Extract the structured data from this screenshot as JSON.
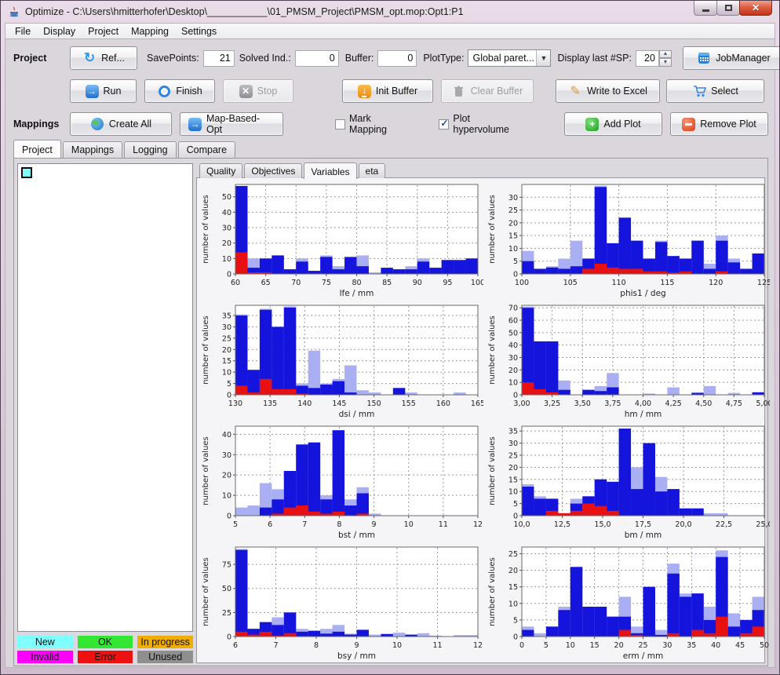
{
  "window": {
    "title": "Optimize - C:\\Users\\hmitterhofer\\Desktop\\___________\\01_PMSM_Project\\PMSM_opt.mop:Opt1:P1",
    "controls": {
      "minimize": "minimize",
      "maximize": "maximize",
      "close": "close"
    }
  },
  "menu": {
    "items": [
      "File",
      "Display",
      "Project",
      "Mapping",
      "Settings"
    ]
  },
  "toolbar": {
    "project_label": "Project",
    "ref_button": "Ref...",
    "savepoints_label": "SavePoints:",
    "savepoints_value": "21",
    "solved_label": "Solved Ind.:",
    "solved_value": "0",
    "buffer_label": "Buffer:",
    "buffer_value": "0",
    "plottype_label": "PlotType:",
    "plottype_value": "Global paret...",
    "display_last_label": "Display last #SP:",
    "display_last_value": "20",
    "jobmanager_button": "JobManager",
    "run_button": "Run",
    "finish_button": "Finish",
    "stop_button": "Stop",
    "init_buffer_button": "Init Buffer",
    "clear_buffer_button": "Clear Buffer",
    "excel_button": "Write to Excel",
    "select_button": "Select",
    "mappings_label": "Mappings",
    "create_all_button": "Create All",
    "map_based_button": "Map-Based-Opt",
    "mark_mapping_label": "Mark Mapping",
    "mark_mapping_checked": false,
    "plot_hypervolume_label": "Plot hypervolume",
    "plot_hypervolume_checked": true,
    "add_plot_button": "Add Plot",
    "remove_plot_button": "Remove Plot"
  },
  "tabs": {
    "outer": [
      "Project",
      "Mappings",
      "Logging",
      "Compare"
    ],
    "outer_active": "Project",
    "inner": [
      "Quality",
      "Objectives",
      "Variables",
      "eta"
    ],
    "inner_active": "Variables"
  },
  "legend": {
    "items": [
      {
        "label": "New",
        "color": "#80ffff"
      },
      {
        "label": "OK",
        "color": "#33e633"
      },
      {
        "label": "In progress",
        "color": "#f0ad00"
      },
      {
        "label": "Invalid",
        "color": "#ff00ff"
      },
      {
        "label": "Error",
        "color": "#ee1111"
      },
      {
        "label": "Unused",
        "color": "#8f8f8f"
      }
    ]
  },
  "icons": {
    "refresh": "↻",
    "run-arrow": "→",
    "stop-x": "✕",
    "init-arrow": "↓",
    "pencil": "✎",
    "plus": "+",
    "check": "✓",
    "combo-arrow": "▼",
    "spin-up": "▲",
    "spin-down": "▼",
    "close-x": "✕"
  },
  "chart_colors": {
    "background_series": "#a9aff2",
    "current_series": "#1414dd",
    "error_series": "#e81010"
  },
  "chart_data": [
    {
      "type": "bar",
      "name": "lfe",
      "xlabel": "lfe / mm",
      "ylabel": "number of values",
      "x_range": [
        60,
        100
      ],
      "x_ticks": [
        60,
        65,
        70,
        75,
        80,
        85,
        90,
        95,
        100
      ],
      "x_tick_labels": [
        "60",
        "65",
        "70",
        "75",
        "80",
        "85",
        "90",
        "95",
        "100"
      ],
      "y_ticks": [
        0,
        10,
        20,
        30,
        40,
        50
      ],
      "y_max": 58,
      "series": [
        {
          "name": "background",
          "color": "#a9aff2",
          "values": [
            57,
            10,
            10,
            12,
            3,
            10,
            2,
            12,
            5,
            11,
            12,
            1,
            4,
            3,
            5,
            10,
            4,
            9,
            9,
            10
          ]
        },
        {
          "name": "current",
          "color": "#1414dd",
          "values": [
            57,
            4,
            10,
            12,
            3,
            8,
            2,
            11,
            3,
            11,
            5,
            0,
            4,
            3,
            3,
            8,
            4,
            9,
            9,
            10
          ]
        },
        {
          "name": "error",
          "color": "#e81010",
          "values": [
            14,
            1,
            1,
            0,
            0,
            0,
            0,
            0,
            0,
            0,
            0,
            0,
            0,
            0,
            0,
            0,
            0,
            0,
            0,
            0
          ]
        }
      ]
    },
    {
      "type": "bar",
      "name": "phis1",
      "xlabel": "phis1 / deg",
      "ylabel": "number of values",
      "x_range": [
        100,
        125
      ],
      "x_ticks": [
        100,
        105,
        110,
        115,
        120,
        125
      ],
      "x_tick_labels": [
        "100",
        "105",
        "110",
        "115",
        "120",
        "125"
      ],
      "y_ticks": [
        0,
        5,
        10,
        15,
        20,
        25,
        30
      ],
      "y_max": 35,
      "series": [
        {
          "name": "background",
          "color": "#a9aff2",
          "values": [
            9,
            2,
            3,
            6,
            13,
            6,
            34.5,
            12,
            22,
            13,
            6,
            13,
            7,
            6,
            13,
            4,
            15,
            6,
            2,
            8
          ]
        },
        {
          "name": "current",
          "color": "#1414dd",
          "values": [
            5,
            2,
            2.5,
            2,
            3,
            6,
            34,
            12,
            22,
            13,
            6,
            12.5,
            7,
            6,
            13,
            2,
            13,
            4.5,
            2,
            8
          ]
        },
        {
          "name": "error",
          "color": "#e81010",
          "values": [
            0,
            0,
            0,
            0,
            0,
            2,
            4,
            2.5,
            2,
            2,
            1,
            1,
            0.5,
            1,
            0,
            0,
            1,
            0,
            0,
            0
          ]
        }
      ]
    },
    {
      "type": "bar",
      "name": "dsi",
      "xlabel": "dsi / mm",
      "ylabel": "number of values",
      "x_range": [
        130,
        165
      ],
      "x_ticks": [
        130,
        135,
        140,
        145,
        150,
        155,
        160,
        165
      ],
      "x_tick_labels": [
        "130",
        "135",
        "140",
        "145",
        "150",
        "155",
        "160",
        "165"
      ],
      "y_ticks": [
        0,
        5,
        10,
        15,
        20,
        25,
        30,
        35
      ],
      "y_max": 39.5,
      "series": [
        {
          "name": "background",
          "color": "#a9aff2",
          "values": [
            35.5,
            11,
            38,
            30,
            39,
            5,
            19.5,
            5,
            7,
            13,
            2,
            1,
            0,
            3,
            1,
            0,
            0,
            0,
            1,
            0
          ]
        },
        {
          "name": "current",
          "color": "#1414dd",
          "values": [
            35,
            11,
            37.5,
            30,
            38.5,
            4,
            3,
            4.5,
            6,
            1,
            0,
            0,
            0,
            3,
            0,
            0,
            0,
            0,
            0,
            0
          ]
        },
        {
          "name": "error",
          "color": "#e81010",
          "values": [
            4,
            1,
            7,
            2.5,
            2.5,
            0.5,
            0,
            0,
            0,
            0,
            0,
            0,
            0,
            0,
            0,
            0,
            0,
            0,
            0,
            0
          ]
        }
      ]
    },
    {
      "type": "bar",
      "name": "hm",
      "xlabel": "hm / mm",
      "ylabel": "number of values",
      "x_range": [
        3.0,
        5.0
      ],
      "x_ticks": [
        3.0,
        3.25,
        3.5,
        3.75,
        4.0,
        4.25,
        4.5,
        4.75,
        5.0
      ],
      "x_tick_labels": [
        "3,00",
        "3,25",
        "3,50",
        "3,75",
        "4,00",
        "4,25",
        "4,50",
        "4,75",
        "5,00"
      ],
      "y_ticks": [
        0,
        10,
        20,
        30,
        40,
        50,
        60,
        70
      ],
      "y_max": 72,
      "series": [
        {
          "name": "background",
          "color": "#a9aff2",
          "values": [
            71,
            43,
            43,
            11.5,
            0,
            4,
            7,
            17.5,
            0,
            0,
            1,
            0,
            6,
            0,
            2,
            7,
            0,
            1.5,
            0,
            2
          ]
        },
        {
          "name": "current",
          "color": "#1414dd",
          "values": [
            70,
            43,
            43,
            4,
            0,
            4,
            3,
            6,
            0,
            0,
            0,
            0,
            0,
            0,
            1.5,
            0,
            0,
            0,
            0,
            2
          ]
        },
        {
          "name": "error",
          "color": "#e81010",
          "values": [
            10,
            4.5,
            2,
            0,
            0,
            0,
            0,
            0,
            0,
            0,
            0,
            0,
            0,
            0,
            0,
            0,
            0,
            0,
            0,
            0
          ]
        }
      ]
    },
    {
      "type": "bar",
      "name": "bst",
      "xlabel": "bst / mm",
      "ylabel": "number of values",
      "x_range": [
        5,
        12
      ],
      "x_ticks": [
        5,
        6,
        7,
        8,
        9,
        10,
        11,
        12
      ],
      "x_tick_labels": [
        "5",
        "6",
        "7",
        "8",
        "9",
        "10",
        "11",
        "12"
      ],
      "y_ticks": [
        0,
        10,
        20,
        30,
        40
      ],
      "y_max": 44,
      "series": [
        {
          "name": "background",
          "color": "#a9aff2",
          "values": [
            4,
            5,
            16,
            13,
            22,
            35,
            36,
            10,
            42,
            8,
            14,
            1,
            0,
            0,
            0,
            0,
            0,
            0,
            0,
            0
          ]
        },
        {
          "name": "current",
          "color": "#1414dd",
          "values": [
            0,
            0,
            4,
            8,
            22,
            35,
            36,
            8,
            42,
            5,
            11,
            0,
            0,
            0,
            0,
            0,
            0,
            0,
            0,
            0
          ]
        },
        {
          "name": "error",
          "color": "#e81010",
          "values": [
            0,
            0,
            0,
            1,
            4,
            5,
            2,
            1,
            2,
            0,
            1,
            0,
            0,
            0,
            0,
            0,
            0,
            0,
            0,
            0
          ]
        }
      ]
    },
    {
      "type": "bar",
      "name": "bm",
      "xlabel": "bm / mm",
      "ylabel": "number of values",
      "x_range": [
        10,
        25
      ],
      "x_ticks": [
        10,
        12.5,
        15,
        17.5,
        20,
        22.5,
        25
      ],
      "x_tick_labels": [
        "10,0",
        "12,5",
        "15,0",
        "17,5",
        "20,0",
        "22,5",
        "25,0"
      ],
      "y_ticks": [
        0,
        5,
        10,
        15,
        20,
        25,
        30,
        35
      ],
      "y_max": 37,
      "series": [
        {
          "name": "background",
          "color": "#a9aff2",
          "values": [
            13,
            8,
            7,
            1,
            7,
            8,
            15,
            14,
            36,
            20,
            30,
            16,
            11,
            3,
            3,
            1,
            1,
            0,
            0,
            0
          ]
        },
        {
          "name": "current",
          "color": "#1414dd",
          "values": [
            12,
            7,
            7,
            1,
            5,
            8,
            15,
            14,
            36,
            11,
            30,
            10,
            11,
            3,
            3,
            0,
            0,
            0,
            0,
            0
          ]
        },
        {
          "name": "error",
          "color": "#e81010",
          "values": [
            0,
            0,
            2,
            1,
            2,
            5,
            4,
            2,
            0,
            0,
            0,
            0,
            0,
            0,
            0,
            0,
            0,
            0,
            0,
            0
          ]
        }
      ]
    },
    {
      "type": "bar",
      "name": "bsy",
      "xlabel": "bsy / mm",
      "ylabel": "number of values",
      "x_range": [
        6,
        12
      ],
      "x_ticks": [
        6,
        7,
        8,
        9,
        10,
        11,
        12
      ],
      "x_tick_labels": [
        "6",
        "7",
        "8",
        "9",
        "10",
        "11",
        "12"
      ],
      "y_ticks": [
        0,
        25,
        50,
        75
      ],
      "y_max": 93,
      "series": [
        {
          "name": "background",
          "color": "#a9aff2",
          "values": [
            91,
            8,
            15,
            20,
            25,
            8,
            6,
            8,
            12,
            3,
            7,
            2,
            3,
            4,
            2,
            3.5,
            1,
            0,
            1.5,
            1.5
          ]
        },
        {
          "name": "current",
          "color": "#1414dd",
          "values": [
            90,
            8,
            15,
            12,
            25,
            5,
            6,
            3,
            5,
            2,
            7,
            0,
            2.5,
            0,
            2,
            0,
            0,
            0,
            0,
            0
          ]
        },
        {
          "name": "error",
          "color": "#e81010",
          "values": [
            5,
            2,
            5,
            1,
            3.5,
            0,
            0,
            0,
            0,
            0,
            0,
            0,
            0,
            0,
            0,
            0,
            0,
            0,
            0,
            0
          ]
        }
      ]
    },
    {
      "type": "bar",
      "name": "erm",
      "xlabel": "erm / mm",
      "ylabel": "number of values",
      "x_range": [
        0,
        50
      ],
      "x_ticks": [
        0,
        5,
        10,
        15,
        20,
        25,
        30,
        35,
        40,
        45,
        50
      ],
      "x_tick_labels": [
        "0",
        "5",
        "10",
        "15",
        "20",
        "25",
        "30",
        "35",
        "40",
        "45",
        "50"
      ],
      "y_ticks": [
        0,
        5,
        10,
        15,
        20,
        25
      ],
      "y_max": 27,
      "series": [
        {
          "name": "background",
          "color": "#a9aff2",
          "values": [
            3,
            1,
            3,
            9,
            21,
            9,
            9,
            6,
            12,
            3,
            15,
            2,
            22,
            13,
            13,
            9,
            26,
            7,
            5,
            12
          ]
        },
        {
          "name": "current",
          "color": "#1414dd",
          "values": [
            2,
            0,
            3,
            8,
            21,
            9,
            9,
            6,
            6,
            1,
            15,
            0.5,
            19,
            12,
            13,
            5,
            24,
            3,
            5,
            8
          ]
        },
        {
          "name": "error",
          "color": "#e81010",
          "values": [
            0,
            0,
            0,
            0,
            0,
            0,
            0,
            0,
            2,
            0.5,
            0,
            0,
            1,
            0,
            2,
            1,
            6,
            0,
            1,
            3
          ]
        }
      ]
    }
  ]
}
